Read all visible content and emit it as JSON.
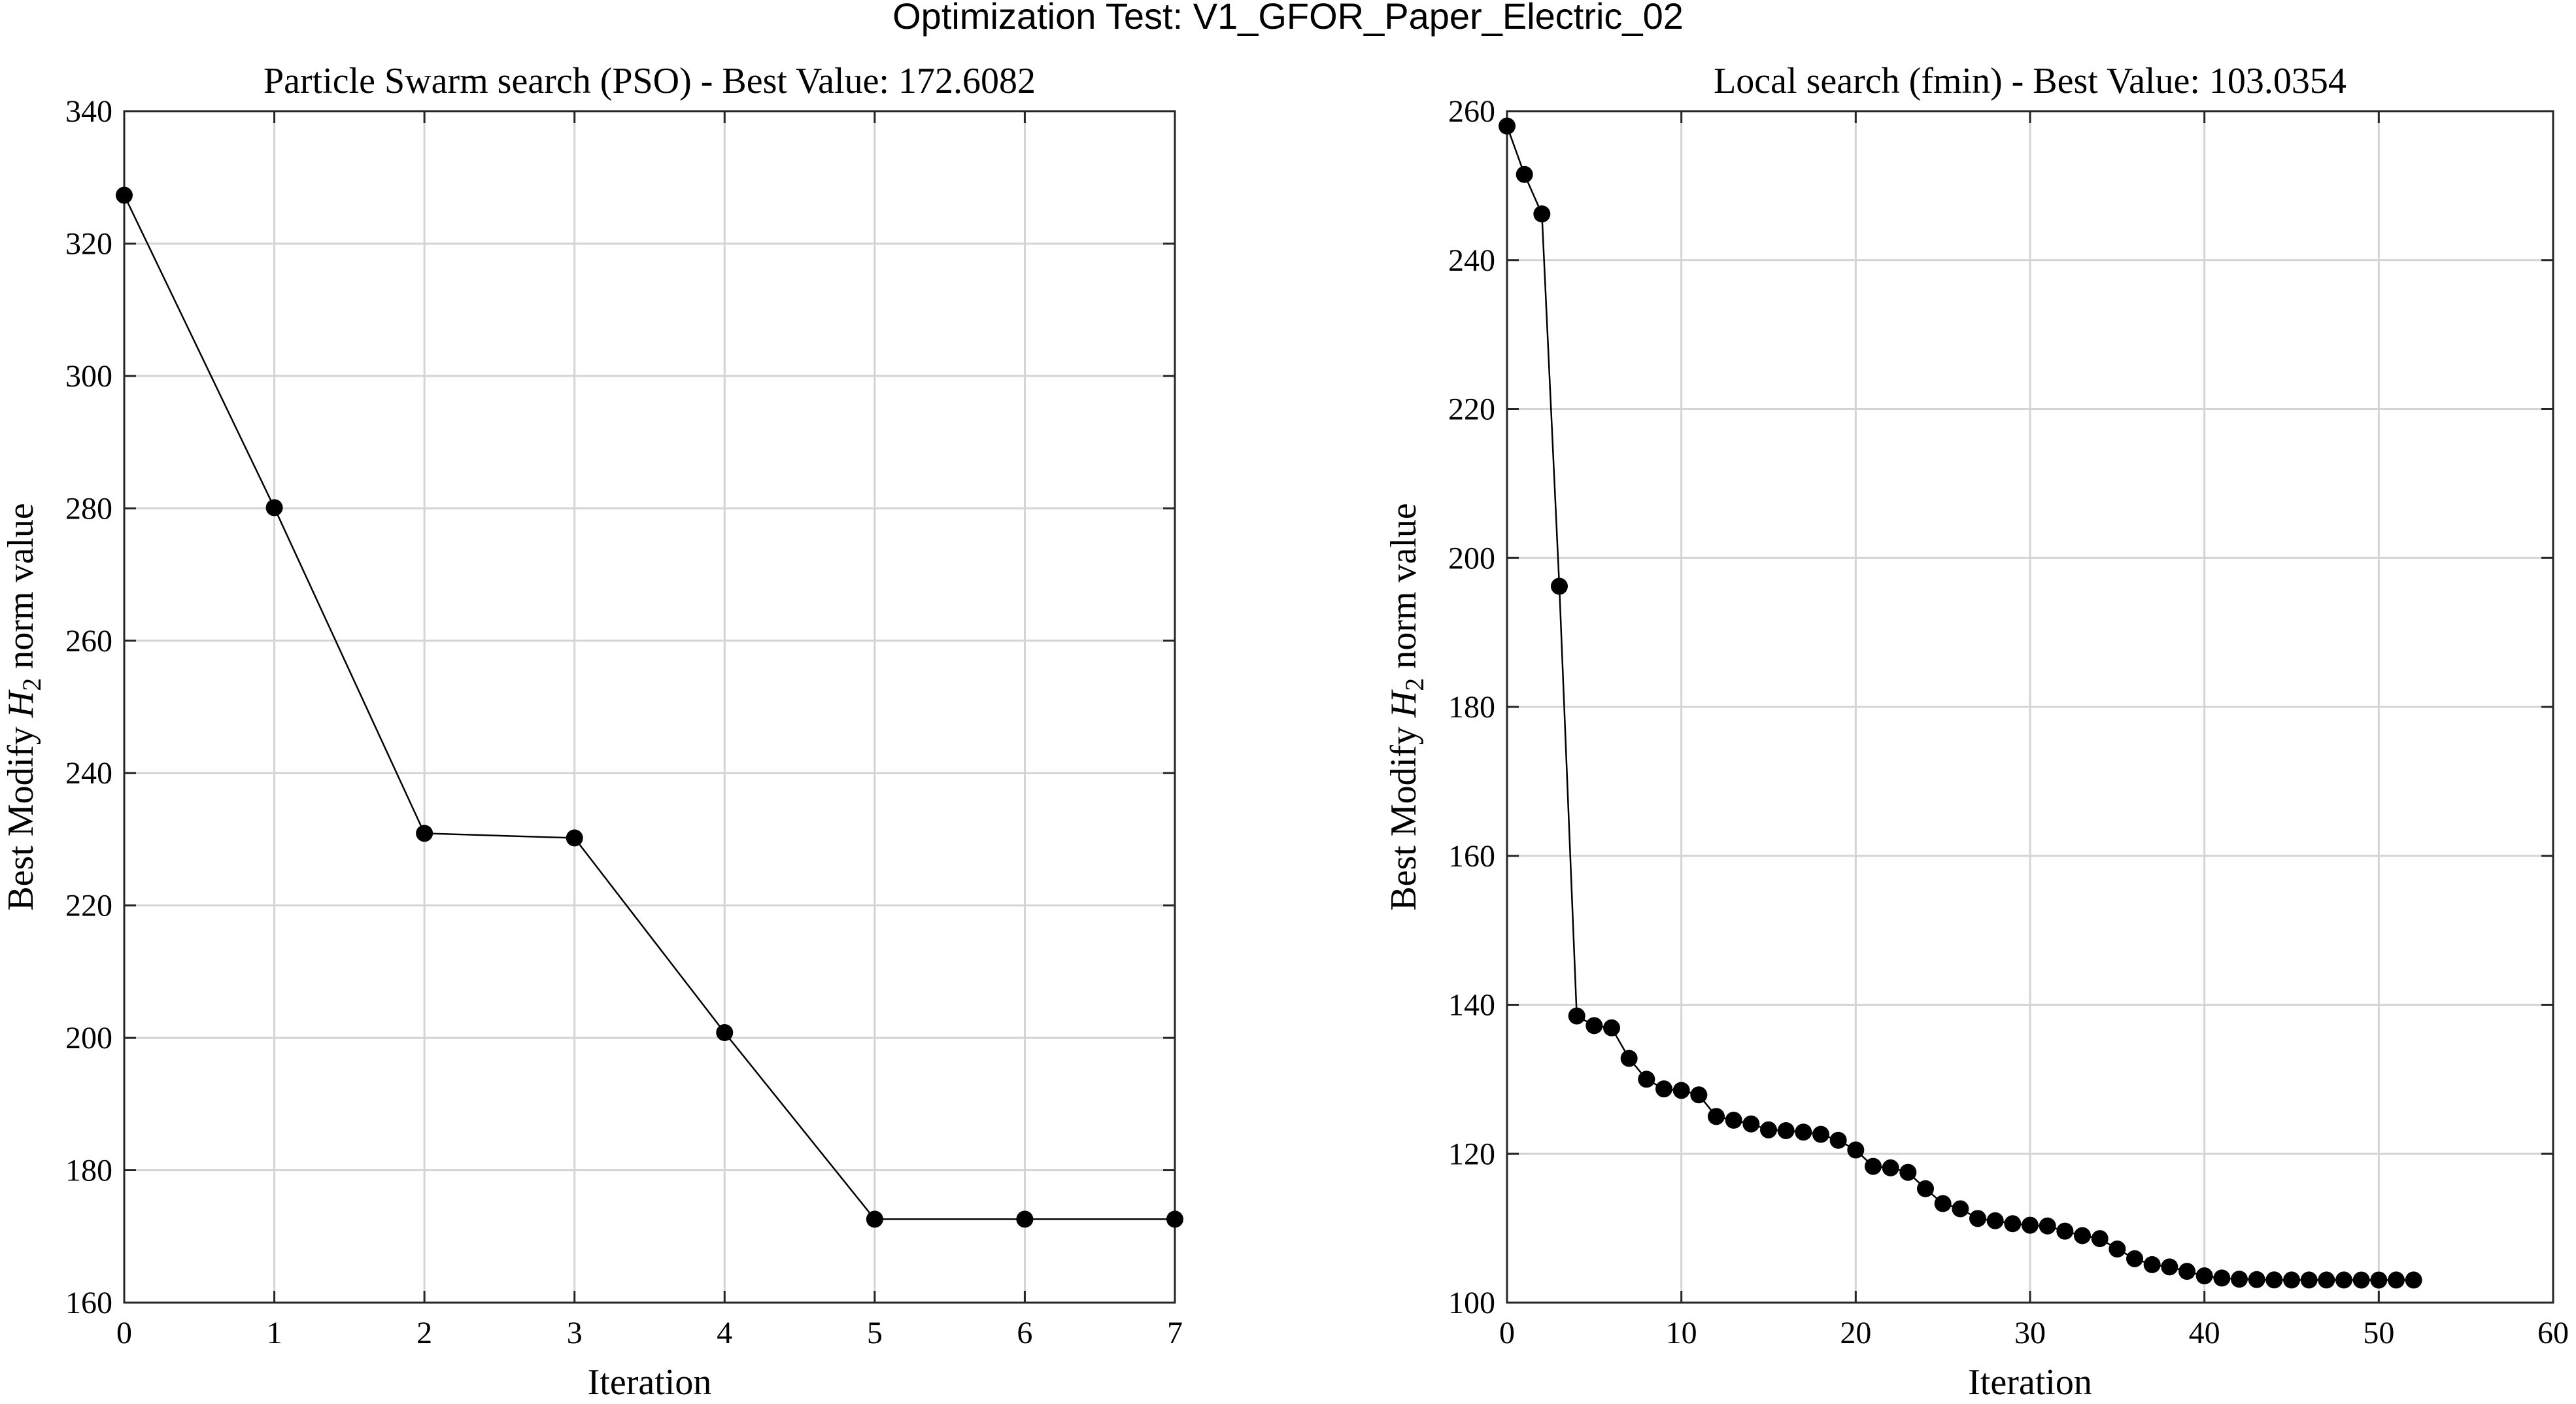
{
  "figure": {
    "title": "Optimization Test: V1_GFOR_Paper_Electric_02"
  },
  "colors": {
    "background": "#ffffff",
    "line": "#000000",
    "marker": "#000000",
    "grid": "#d4d4d4",
    "axis": "#262626"
  },
  "chart_data": [
    {
      "type": "line",
      "title": "Particle Swarm search (PSO) - Best Value: 172.6082",
      "xlabel": "Iteration",
      "ylabel_prefix": "Best Modify ",
      "ylabel_var": "H",
      "ylabel_sub": "2",
      "ylabel_suffix": " norm value",
      "xlim": [
        0,
        7
      ],
      "ylim": [
        160,
        340
      ],
      "xticks": [
        0,
        1,
        2,
        3,
        4,
        5,
        6,
        7
      ],
      "yticks": [
        160,
        180,
        200,
        220,
        240,
        260,
        280,
        300,
        320,
        340
      ],
      "grid": true,
      "x": [
        0,
        1,
        2,
        3,
        4,
        5,
        6,
        7
      ],
      "y": [
        327.3,
        280.1,
        230.9,
        230.2,
        200.8,
        172.6082,
        172.6082,
        172.6082
      ]
    },
    {
      "type": "line",
      "title": "Local search (fmin) - Best Value: 103.0354",
      "xlabel": "Iteration",
      "ylabel_prefix": "Best Modify ",
      "ylabel_var": "H",
      "ylabel_sub": "2",
      "ylabel_suffix": " norm value",
      "xlim": [
        0,
        60
      ],
      "ylim": [
        100,
        260
      ],
      "xticks": [
        0,
        10,
        20,
        30,
        40,
        50,
        60
      ],
      "yticks": [
        100,
        120,
        140,
        160,
        180,
        200,
        220,
        240,
        260
      ],
      "grid": true,
      "x": [
        0,
        1,
        2,
        3,
        4,
        5,
        6,
        7,
        8,
        9,
        10,
        11,
        12,
        13,
        14,
        15,
        16,
        17,
        18,
        19,
        20,
        21,
        22,
        23,
        24,
        25,
        26,
        27,
        28,
        29,
        30,
        31,
        32,
        33,
        34,
        35,
        36,
        37,
        38,
        39,
        40,
        41,
        42,
        43,
        44,
        45,
        46,
        47,
        48,
        49,
        50,
        51,
        52
      ],
      "y": [
        258.0,
        251.5,
        246.2,
        196.2,
        138.5,
        137.2,
        136.9,
        132.8,
        130.0,
        128.7,
        128.5,
        127.9,
        125.0,
        124.5,
        124.0,
        123.2,
        123.1,
        122.9,
        122.6,
        121.8,
        120.5,
        118.3,
        118.1,
        117.5,
        115.3,
        113.3,
        112.6,
        111.3,
        111.0,
        110.6,
        110.4,
        110.3,
        109.6,
        109.0,
        108.6,
        107.2,
        105.9,
        105.1,
        104.8,
        104.2,
        103.6,
        103.3,
        103.15,
        103.1,
        103.05,
        103.04,
        103.04,
        103.04,
        103.04,
        103.035,
        103.035,
        103.0354,
        103.0354
      ]
    }
  ]
}
